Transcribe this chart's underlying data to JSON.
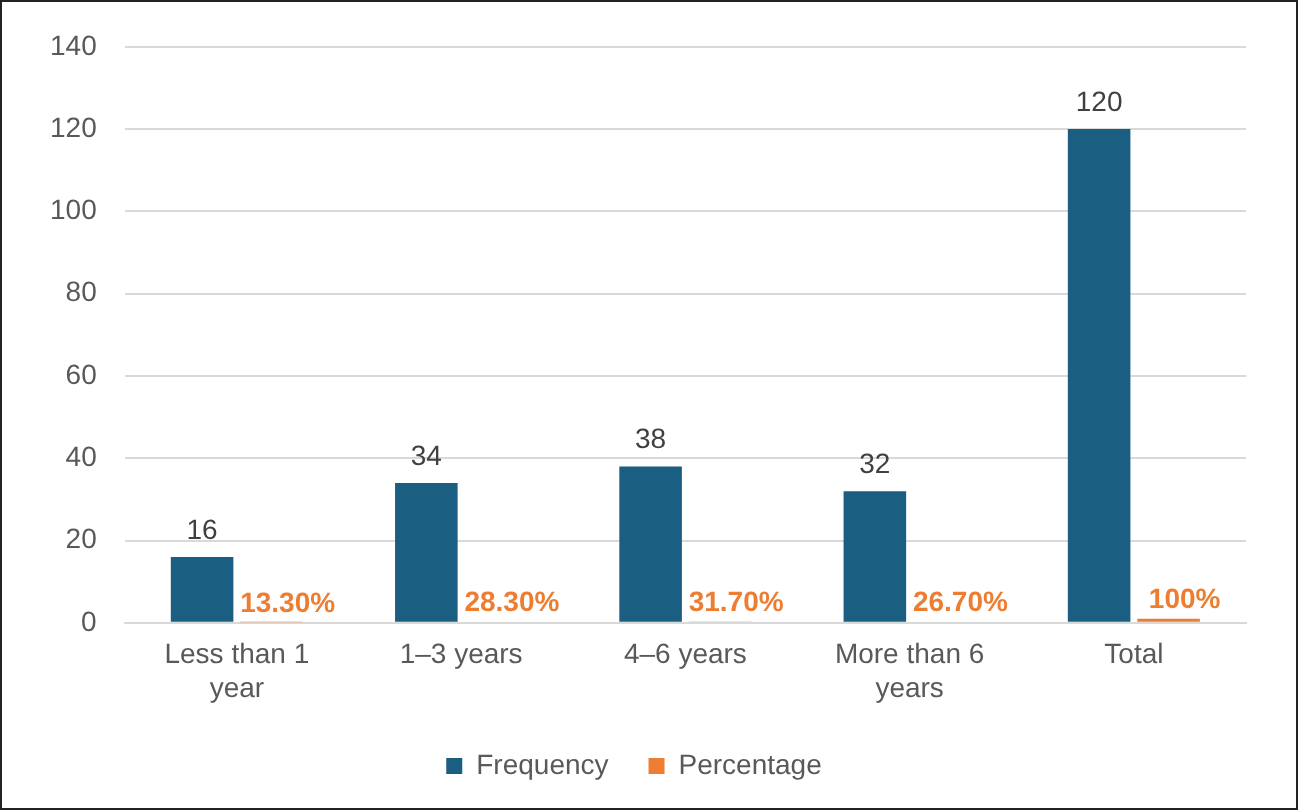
{
  "chart_data": {
    "type": "bar",
    "categories": [
      "Less than 1 year",
      "1–3 years",
      "4–6 years",
      "More than 6 years",
      "Total"
    ],
    "series": [
      {
        "name": "Frequency",
        "color": "#1a5f82",
        "values": [
          16,
          34,
          38,
          32,
          120
        ],
        "value_labels": [
          "16",
          "34",
          "38",
          "32",
          "120"
        ]
      },
      {
        "name": "Percentage",
        "color": "#ed7d31",
        "values": [
          0.133,
          0.283,
          0.317,
          0.267,
          1
        ],
        "value_labels": [
          "13.30%",
          "28.30%",
          "31.70%",
          "26.70%",
          "100%"
        ]
      }
    ],
    "ylim": [
      0,
      140
    ],
    "yticks": [
      0,
      20,
      40,
      60,
      80,
      100,
      120,
      140
    ],
    "grid": "y",
    "legend": "bottom"
  }
}
